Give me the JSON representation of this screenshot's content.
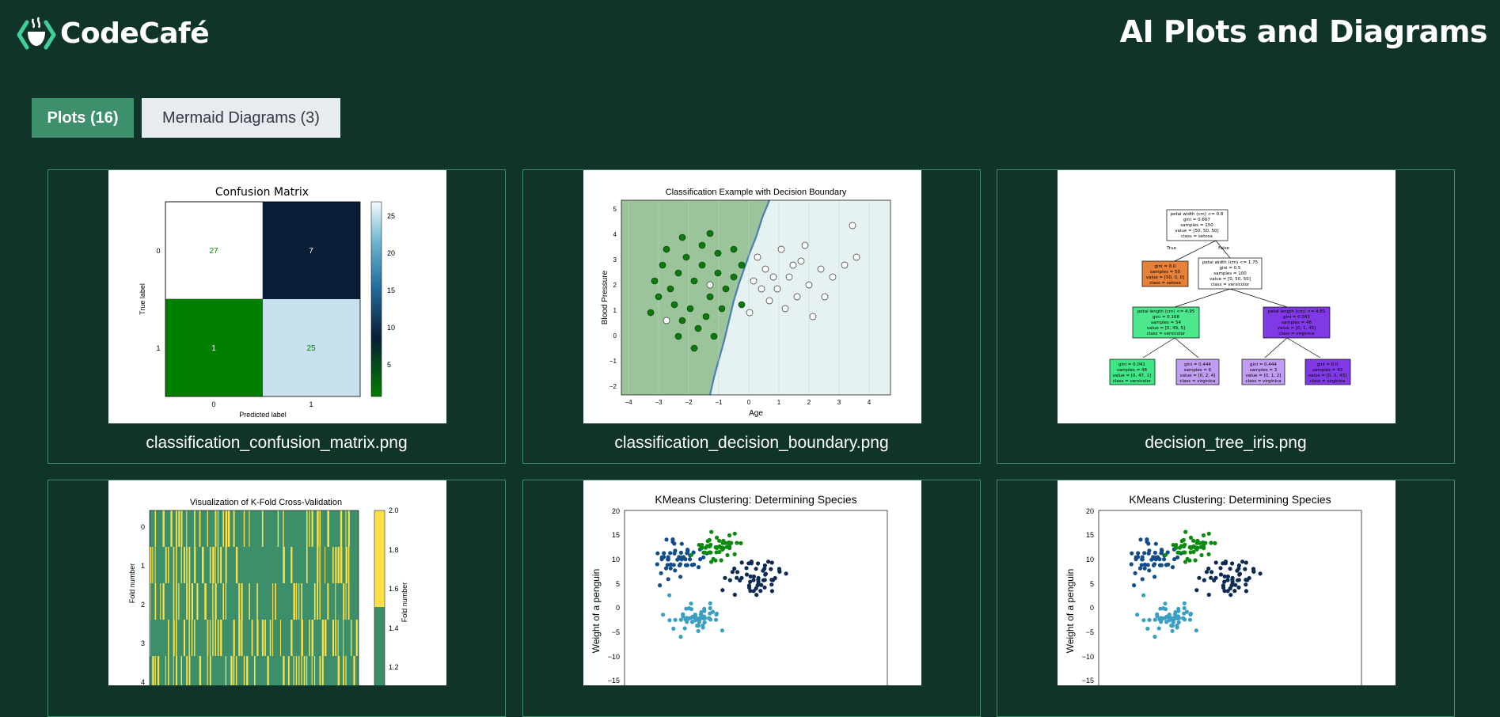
{
  "header": {
    "logo_text": "CodeCafé",
    "page_title": "AI Plots and Diagrams"
  },
  "tabs": [
    {
      "label": "Plots (16)",
      "active": true
    },
    {
      "label": "Mermaid Diagrams (3)",
      "active": false
    }
  ],
  "colors": {
    "background": "#10342a",
    "accent": "#3e8f6c",
    "card_border": "#3b8c69"
  },
  "cards": [
    {
      "filename": "classification_confusion_matrix.png",
      "plot": {
        "title": "Confusion Matrix",
        "xlabel": "Predicted label",
        "ylabel": "True label",
        "xticks": [
          "0",
          "1"
        ],
        "yticks": [
          "0",
          "1"
        ],
        "colorbar_ticks": [
          "25",
          "20",
          "15",
          "10",
          "5"
        ]
      }
    },
    {
      "filename": "classification_decision_boundary.png",
      "plot": {
        "title": "Classification Example with Decision Boundary",
        "xlabel": "Age",
        "ylabel": "Blood Pressure",
        "xticks": [
          "−4",
          "−3",
          "−2",
          "−1",
          "0",
          "1",
          "2",
          "3",
          "4"
        ],
        "yticks": [
          "5",
          "4",
          "3",
          "2",
          "1",
          "0",
          "−1",
          "−2"
        ]
      }
    },
    {
      "filename": "decision_tree_iris.png",
      "plot": {
        "root": [
          "petal width (cm) <= 0.8",
          "gini = 0.667",
          "samples = 150",
          "value = [50, 50, 50]",
          "class = setosa"
        ],
        "true_label": "True",
        "false_label": "False",
        "left": [
          "gini = 0.0",
          "samples = 50",
          "value = [50, 0, 0]",
          "class = setosa"
        ],
        "right": [
          "petal width (cm) <= 1.75",
          "gini = 0.5",
          "samples = 100",
          "value = [0, 50, 50]",
          "class = versicolor"
        ],
        "rl": [
          "petal length (cm) <= 4.95",
          "gini = 0.168",
          "samples = 54",
          "value = [0, 49, 5]",
          "class = versicolor"
        ],
        "rr": [
          "petal length (cm) <= 4.85",
          "gini = 0.043",
          "samples = 46",
          "value = [0, 1, 45]",
          "class = virginica"
        ],
        "leaf1": [
          "gini = 0.041",
          "samples = 48",
          "value = [0, 47, 1]",
          "class = versicolor"
        ],
        "leaf2": [
          "gini = 0.444",
          "samples = 6",
          "value = [0, 2, 4]",
          "class = virginica"
        ],
        "leaf3": [
          "gini = 0.444",
          "samples = 3",
          "value = [0, 1, 2]",
          "class = virginica"
        ],
        "leaf4": [
          "gini = 0.0",
          "samples = 43",
          "value = [0, 0, 43]",
          "class = virginica"
        ]
      }
    },
    {
      "filename": "",
      "plot": {
        "title": "Visualization of K-Fold Cross-Validation",
        "ylabel": "Fold number",
        "cbar_label": "Fold number",
        "yticks": [
          "0",
          "1",
          "2",
          "3",
          "4"
        ],
        "colorbar_ticks": [
          "2.0",
          "1.8",
          "1.6",
          "1.4",
          "1.2"
        ]
      }
    },
    {
      "filename": "",
      "plot": {
        "title": "KMeans Clustering: Determining Species",
        "ylabel": "Weight of a penguin",
        "yticks": [
          "20",
          "15",
          "10",
          "5",
          "0",
          "−5",
          "−10",
          "−15"
        ]
      }
    },
    {
      "filename": "",
      "plot": {
        "title": "KMeans Clustering: Determining Species",
        "ylabel": "Weight of a penguin",
        "yticks": [
          "20",
          "15",
          "10",
          "5",
          "0",
          "−5",
          "−10",
          "−15"
        ]
      }
    }
  ]
}
